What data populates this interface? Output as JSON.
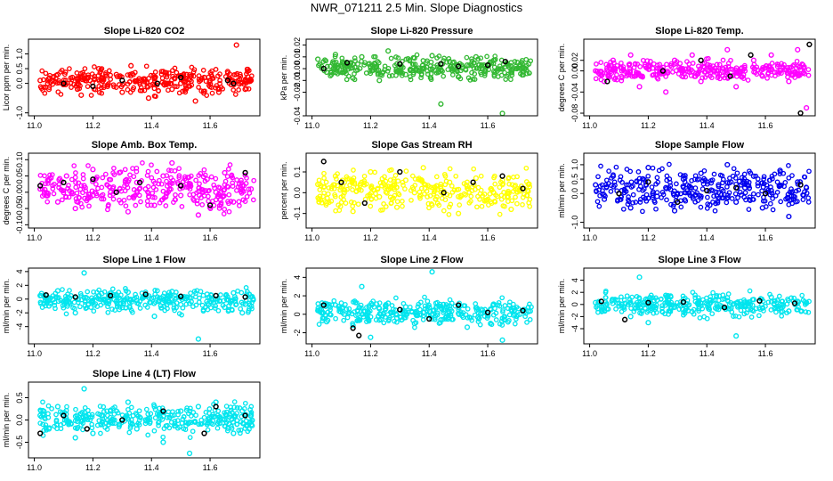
{
  "title": "NWR_071211  2.5 Min. Slope Diagnostics",
  "chart_data": [
    {
      "type": "scatter",
      "title": "Slope Li-820 CO2",
      "ylabel": "Licor ppm per min.",
      "xlim": [
        10.98,
        11.77
      ],
      "ylim": [
        -1.1,
        1.5
      ],
      "xticks": [
        "11.0",
        "11.2",
        "11.4",
        "11.6"
      ],
      "yticks": [
        "-1.0",
        "0.0",
        "0.5",
        "1.0"
      ],
      "color": "#ff0000",
      "spread": 0.28,
      "x": [
        11.02,
        11.05,
        11.08,
        11.1,
        11.13,
        11.16,
        11.19,
        11.22,
        11.25,
        11.28,
        11.3,
        11.33,
        11.36,
        11.39,
        11.41,
        11.44,
        11.47,
        11.5,
        11.52,
        11.55,
        11.58,
        11.6,
        11.63,
        11.66,
        11.69,
        11.72,
        11.74
      ],
      "y": [
        0.1,
        -0.2,
        0.3,
        0.0,
        0.2,
        -0.4,
        0.1,
        0.5,
        -0.1,
        0.3,
        -0.3,
        0.6,
        0.1,
        -0.5,
        0.2,
        0.4,
        -0.2,
        0.0,
        0.3,
        -0.6,
        0.2,
        0.1,
        -0.3,
        0.4,
        1.3,
        -0.2,
        0.1
      ],
      "highlight": [
        [
          11.1,
          0.0
        ],
        [
          11.2,
          -0.1
        ],
        [
          11.3,
          0.1
        ],
        [
          11.42,
          0.0
        ],
        [
          11.5,
          0.2
        ],
        [
          11.66,
          0.1
        ],
        [
          11.68,
          0.0
        ]
      ]
    },
    {
      "type": "scatter",
      "title": "Slope Li-820 Pressure",
      "ylabel": "kPa per min.",
      "xlim": [
        10.98,
        11.77
      ],
      "ylim": [
        -0.04,
        0.025
      ],
      "xticks": [
        "11.0",
        "11.2",
        "11.4",
        "11.6"
      ],
      "yticks": [
        "-0.04",
        "-0.02",
        "-0.01",
        "0.00",
        "0.01",
        "0.02"
      ],
      "color": "#33b833",
      "spread": 0.006,
      "x": [
        11.02,
        11.05,
        11.08,
        11.11,
        11.14,
        11.17,
        11.2,
        11.23,
        11.26,
        11.29,
        11.32,
        11.35,
        11.38,
        11.41,
        11.44,
        11.47,
        11.5,
        11.53,
        11.56,
        11.59,
        11.62,
        11.65,
        11.68,
        11.71,
        11.74
      ],
      "y": [
        0.008,
        -0.003,
        0.012,
        0.005,
        -0.008,
        0.01,
        0.002,
        -0.01,
        0.015,
        0.004,
        -0.005,
        0.009,
        0.0,
        0.011,
        -0.03,
        0.006,
        -0.007,
        0.003,
        0.01,
        -0.004,
        0.007,
        -0.038,
        0.005,
        0.002,
        0.004
      ],
      "highlight": [
        [
          11.04,
          0.0
        ],
        [
          11.12,
          0.005
        ],
        [
          11.3,
          0.004
        ],
        [
          11.44,
          0.004
        ],
        [
          11.5,
          0.002
        ],
        [
          11.6,
          0.003
        ],
        [
          11.66,
          0.006
        ]
      ]
    },
    {
      "type": "scatter",
      "title": "Slope Li-820 Temp.",
      "ylabel": "degrees C per min.",
      "xlim": [
        10.98,
        11.77
      ],
      "ylim": [
        -0.085,
        0.06
      ],
      "xticks": [
        "11.0",
        "11.2",
        "11.4",
        "11.6"
      ],
      "yticks": [
        "-0.08",
        "-0.04",
        "0.00",
        "0.02"
      ],
      "color": "#ff00ff",
      "spread": 0.012,
      "x": [
        11.02,
        11.05,
        11.08,
        11.11,
        11.14,
        11.17,
        11.2,
        11.23,
        11.26,
        11.29,
        11.32,
        11.35,
        11.38,
        11.41,
        11.44,
        11.47,
        11.5,
        11.53,
        11.56,
        11.59,
        11.62,
        11.65,
        11.68,
        11.71,
        11.74
      ],
      "y": [
        0.0,
        -0.02,
        0.02,
        0.0,
        0.03,
        -0.03,
        0.01,
        0.0,
        -0.04,
        0.02,
        0.0,
        0.03,
        -0.02,
        0.01,
        0.0,
        0.04,
        -0.03,
        0.0,
        0.02,
        -0.01,
        0.03,
        0.0,
        -0.02,
        0.04,
        -0.07
      ],
      "highlight": [
        [
          11.06,
          -0.02
        ],
        [
          11.25,
          0.0
        ],
        [
          11.38,
          0.02
        ],
        [
          11.48,
          -0.01
        ],
        [
          11.55,
          0.03
        ],
        [
          11.72,
          -0.08
        ],
        [
          11.75,
          0.05
        ]
      ]
    },
    {
      "type": "scatter",
      "title": "Slope Amb. Box Temp.",
      "ylabel": "degrees C per min.",
      "xlim": [
        10.98,
        11.77
      ],
      "ylim": [
        -0.11,
        0.12
      ],
      "xticks": [
        "11.0",
        "11.2",
        "11.4",
        "11.6"
      ],
      "yticks": [
        "-0.10",
        "-0.05",
        "0.00",
        "0.05",
        "0.10"
      ],
      "color": "#ff00ff",
      "spread": 0.045,
      "x": [
        11.02,
        11.05,
        11.08,
        11.11,
        11.14,
        11.17,
        11.2,
        11.23,
        11.26,
        11.29,
        11.32,
        11.35,
        11.38,
        11.41,
        11.44,
        11.47,
        11.5,
        11.53,
        11.56,
        11.59,
        11.62,
        11.65,
        11.68,
        11.71,
        11.74
      ],
      "y": [
        0.01,
        0.04,
        -0.03,
        0.05,
        -0.05,
        0.02,
        0.07,
        -0.02,
        0.0,
        0.06,
        -0.06,
        0.03,
        0.01,
        -0.04,
        0.05,
        0.09,
        -0.01,
        0.02,
        -0.07,
        0.04,
        0.0,
        0.06,
        -0.03,
        0.02,
        0.01
      ],
      "highlight": [
        [
          11.02,
          0.02
        ],
        [
          11.1,
          0.03
        ],
        [
          11.2,
          0.04
        ],
        [
          11.28,
          0.0
        ],
        [
          11.36,
          0.03
        ],
        [
          11.5,
          0.02
        ],
        [
          11.6,
          -0.04
        ],
        [
          11.72,
          0.06
        ]
      ]
    },
    {
      "type": "scatter",
      "title": "Slope Gas Stream RH",
      "ylabel": "percent per min.",
      "xlim": [
        10.98,
        11.77
      ],
      "ylim": [
        -0.17,
        0.19
      ],
      "xticks": [
        "11.0",
        "11.2",
        "11.4",
        "11.6"
      ],
      "yticks": [
        "-0.1",
        "0.0",
        "0.1"
      ],
      "color": "#ffff00",
      "spread": 0.06,
      "x": [
        11.02,
        11.05,
        11.08,
        11.11,
        11.14,
        11.17,
        11.2,
        11.23,
        11.26,
        11.29,
        11.32,
        11.35,
        11.38,
        11.41,
        11.44,
        11.47,
        11.5,
        11.53,
        11.56,
        11.59,
        11.62,
        11.65,
        11.68,
        11.71,
        11.74
      ],
      "y": [
        0.04,
        -0.05,
        0.08,
        0.0,
        -0.09,
        0.05,
        0.1,
        -0.02,
        0.03,
        -0.07,
        0.06,
        0.0,
        0.12,
        -0.06,
        0.02,
        0.05,
        -0.1,
        0.03,
        0.07,
        -0.04,
        0.0,
        0.06,
        -0.08,
        0.02,
        0.04
      ],
      "highlight": [
        [
          11.04,
          0.15
        ],
        [
          11.1,
          0.05
        ],
        [
          11.18,
          -0.05
        ],
        [
          11.3,
          0.1
        ],
        [
          11.45,
          0.0
        ],
        [
          11.55,
          0.05
        ],
        [
          11.65,
          0.08
        ],
        [
          11.72,
          0.02
        ]
      ]
    },
    {
      "type": "scatter",
      "title": "Slope Sample Flow",
      "ylabel": "ml/min per min.",
      "xlim": [
        10.98,
        11.77
      ],
      "ylim": [
        -1.2,
        1.4
      ],
      "xticks": [
        "11.0",
        "11.2",
        "11.4",
        "11.6"
      ],
      "yticks": [
        "-1.0",
        "0.0",
        "0.5",
        "1.0"
      ],
      "color": "#0000ee",
      "spread": 0.45,
      "x": [
        11.02,
        11.05,
        11.08,
        11.11,
        11.14,
        11.17,
        11.2,
        11.23,
        11.26,
        11.29,
        11.32,
        11.35,
        11.38,
        11.41,
        11.44,
        11.47,
        11.5,
        11.53,
        11.56,
        11.59,
        11.62,
        11.65,
        11.68,
        11.71,
        11.74
      ],
      "y": [
        0.3,
        -0.2,
        0.6,
        0.1,
        -0.5,
        0.4,
        0.9,
        -0.1,
        0.2,
        -0.6,
        0.5,
        0.0,
        0.7,
        -0.4,
        0.3,
        1.0,
        -0.3,
        0.2,
        0.6,
        -0.5,
        0.1,
        0.8,
        -0.8,
        0.4,
        0.2
      ],
      "highlight": [
        [
          11.1,
          0.0
        ],
        [
          11.2,
          0.4
        ],
        [
          11.3,
          -0.3
        ],
        [
          11.4,
          0.1
        ],
        [
          11.5,
          0.2
        ],
        [
          11.6,
          0.0
        ],
        [
          11.72,
          0.3
        ]
      ]
    },
    {
      "type": "scatter",
      "title": "Slope Line 1 Flow",
      "ylabel": "ml/min per min.",
      "xlim": [
        10.98,
        11.77
      ],
      "ylim": [
        -6.5,
        4.5
      ],
      "xticks": [
        "11.0",
        "11.2",
        "11.4",
        "11.6"
      ],
      "yticks": [
        "-4",
        "-2",
        "0",
        "2",
        "4"
      ],
      "color": "#00e5ee",
      "spread": 1.1,
      "x": [
        11.02,
        11.05,
        11.08,
        11.11,
        11.14,
        11.17,
        11.2,
        11.23,
        11.26,
        11.29,
        11.32,
        11.35,
        11.38,
        11.41,
        11.44,
        11.47,
        11.5,
        11.53,
        11.56,
        11.59,
        11.62,
        11.65,
        11.68,
        11.71,
        11.74
      ],
      "y": [
        0.5,
        -1.0,
        1.2,
        0.0,
        -2.0,
        3.8,
        -0.5,
        0.8,
        0.3,
        -1.5,
        1.0,
        -0.2,
        0.6,
        -2.5,
        0.4,
        1.1,
        -0.8,
        0.2,
        -5.8,
        0.7,
        0.0,
        -1.2,
        0.9,
        -2.0,
        0.3
      ],
      "highlight": [
        [
          11.04,
          0.6
        ],
        [
          11.14,
          0.3
        ],
        [
          11.26,
          0.5
        ],
        [
          11.38,
          0.7
        ],
        [
          11.5,
          0.4
        ],
        [
          11.62,
          0.5
        ],
        [
          11.72,
          0.3
        ]
      ]
    },
    {
      "type": "scatter",
      "title": "Slope Line 2 Flow",
      "ylabel": "ml/min per min.",
      "xlim": [
        10.98,
        11.77
      ],
      "ylim": [
        -3.2,
        5.0
      ],
      "xticks": [
        "11.0",
        "11.2",
        "11.4",
        "11.6"
      ],
      "yticks": [
        "-2",
        "0",
        "2",
        "4"
      ],
      "color": "#00e5ee",
      "spread": 0.9,
      "x": [
        11.02,
        11.05,
        11.08,
        11.11,
        11.14,
        11.17,
        11.2,
        11.23,
        11.26,
        11.29,
        11.32,
        11.35,
        11.38,
        11.41,
        11.44,
        11.47,
        11.5,
        11.53,
        11.56,
        11.59,
        11.62,
        11.65,
        11.68,
        11.71,
        11.74
      ],
      "y": [
        0.4,
        -0.8,
        1.0,
        0.0,
        -1.2,
        3.0,
        -2.5,
        0.6,
        1.2,
        -0.4,
        0.8,
        -1.0,
        0.2,
        4.6,
        -0.6,
        0.9,
        0.1,
        -1.4,
        0.7,
        -0.2,
        1.1,
        -2.8,
        0.5,
        0.0,
        0.3
      ],
      "highlight": [
        [
          11.04,
          1.0
        ],
        [
          11.14,
          -1.5
        ],
        [
          11.16,
          -2.3
        ],
        [
          11.3,
          0.5
        ],
        [
          11.4,
          -0.5
        ],
        [
          11.5,
          1.0
        ],
        [
          11.6,
          0.2
        ],
        [
          11.72,
          0.4
        ]
      ]
    },
    {
      "type": "scatter",
      "title": "Slope Line 3 Flow",
      "ylabel": "ml/min per min.",
      "xlim": [
        10.98,
        11.77
      ],
      "ylim": [
        -6.5,
        6.0
      ],
      "xticks": [
        "11.0",
        "11.2",
        "11.4",
        "11.6"
      ],
      "yticks": [
        "-4",
        "-2",
        "0",
        "2",
        "4"
      ],
      "color": "#00e5ee",
      "spread": 1.2,
      "x": [
        11.02,
        11.05,
        11.08,
        11.11,
        11.14,
        11.17,
        11.2,
        11.23,
        11.26,
        11.29,
        11.32,
        11.35,
        11.38,
        11.41,
        11.44,
        11.47,
        11.5,
        11.53,
        11.56,
        11.59,
        11.62,
        11.65,
        11.68,
        11.71,
        11.74
      ],
      "y": [
        0.3,
        -1.0,
        0.8,
        0.0,
        -2.0,
        4.5,
        -3.0,
        0.7,
        1.5,
        -0.4,
        0.9,
        -1.2,
        0.2,
        0.6,
        -0.8,
        1.1,
        -5.2,
        0.4,
        0.8,
        -0.6,
        1.2,
        0.0,
        -1.1,
        0.5,
        0.2
      ],
      "highlight": [
        [
          11.04,
          0.5
        ],
        [
          11.12,
          -2.5
        ],
        [
          11.2,
          0.3
        ],
        [
          11.32,
          0.4
        ],
        [
          11.46,
          -0.5
        ],
        [
          11.58,
          0.6
        ],
        [
          11.7,
          0.2
        ]
      ]
    },
    {
      "type": "scatter",
      "title": "Slope Line 4 (LT) Flow",
      "ylabel": "ml/min per min.",
      "xlim": [
        10.98,
        11.77
      ],
      "ylim": [
        -0.85,
        0.85
      ],
      "xticks": [
        "11.0",
        "11.2",
        "11.4",
        "11.6"
      ],
      "yticks": [
        "-0.5",
        "0.0",
        "0.5"
      ],
      "color": "#00e5ee",
      "spread": 0.2,
      "x": [
        11.02,
        11.05,
        11.08,
        11.11,
        11.14,
        11.17,
        11.2,
        11.23,
        11.26,
        11.29,
        11.32,
        11.35,
        11.38,
        11.41,
        11.44,
        11.47,
        11.5,
        11.53,
        11.56,
        11.59,
        11.62,
        11.65,
        11.68,
        11.71,
        11.74
      ],
      "y": [
        0.1,
        -0.2,
        0.3,
        0.0,
        -0.4,
        0.7,
        -0.3,
        0.1,
        0.2,
        -0.1,
        0.4,
        -0.2,
        0.0,
        0.3,
        -0.5,
        0.1,
        0.2,
        -0.75,
        0.3,
        -0.1,
        0.4,
        0.0,
        -0.3,
        0.2,
        0.1
      ],
      "highlight": [
        [
          11.02,
          -0.3
        ],
        [
          11.1,
          0.1
        ],
        [
          11.18,
          -0.2
        ],
        [
          11.3,
          0.0
        ],
        [
          11.44,
          0.2
        ],
        [
          11.58,
          -0.3
        ],
        [
          11.62,
          0.3
        ],
        [
          11.72,
          0.1
        ]
      ]
    }
  ]
}
